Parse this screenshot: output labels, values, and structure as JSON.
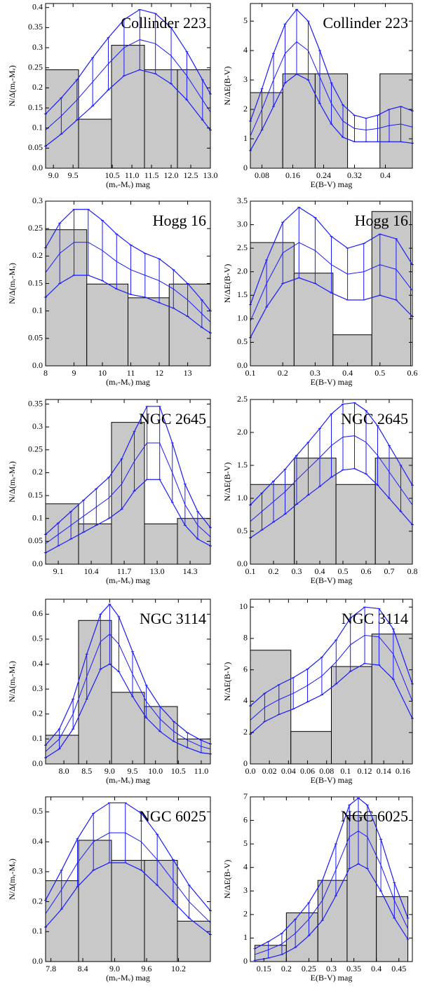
{
  "chart_data": [
    {
      "type": "histogram",
      "title": "Collinder 223",
      "x_label": "(mᵥ-Mᵥ) mag",
      "y_label": "N/Δ(mᵥ-Mᵥ)",
      "bins": [
        8.8,
        9.64,
        10.48,
        11.32,
        12.16,
        13.0
      ],
      "counts": [
        0.245,
        0.122,
        0.306,
        0.245,
        0.245
      ],
      "color": "#c8c8c8",
      "curve": {
        "color": "#1a1aff",
        "x": [
          8.8,
          9.2,
          9.6,
          10.0,
          10.4,
          10.8,
          11.2,
          11.6,
          12.0,
          12.4,
          12.8,
          13.0
        ],
        "values": [
          0.095,
          0.13,
          0.17,
          0.215,
          0.26,
          0.3,
          0.32,
          0.31,
          0.28,
          0.23,
          0.17,
          0.14
        ],
        "errors": [
          0.04,
          0.045,
          0.05,
          0.06,
          0.065,
          0.07,
          0.075,
          0.075,
          0.07,
          0.06,
          0.05,
          0.045
        ]
      },
      "xlim": [
        8.8,
        13.0
      ],
      "xticks": [
        {
          "value": 9,
          "label": "9.0"
        },
        9.5,
        10.5,
        {
          "value": 11,
          "label": "11.0"
        },
        11.5,
        {
          "value": 12,
          "label": "12.0"
        },
        12.5,
        {
          "value": 13,
          "label": "13.0"
        }
      ],
      "ylim": [
        0,
        0.41
      ],
      "yticks": [
        {
          "value": 0,
          "label": "0.0"
        },
        0.05,
        0.1,
        0.15,
        0.2,
        0.25,
        0.3,
        0.35,
        0.4
      ]
    },
    {
      "type": "histogram",
      "title": "Collinder 223",
      "x_label": "E(B-V) mag",
      "y_label": "N/ΔE(B-V)",
      "bins": [
        0.05,
        0.134,
        0.218,
        0.302,
        0.386,
        0.47
      ],
      "counts": [
        2.57,
        3.21,
        3.21,
        0,
        3.21
      ],
      "color": "#c8c8c8",
      "curve": {
        "color": "#1a1aff",
        "x": [
          0.05,
          0.08,
          0.11,
          0.14,
          0.17,
          0.2,
          0.23,
          0.26,
          0.29,
          0.32,
          0.35,
          0.38,
          0.41,
          0.44,
          0.47
        ],
        "values": [
          1.1,
          2.0,
          3.0,
          3.9,
          4.3,
          4.0,
          3.1,
          2.2,
          1.6,
          1.35,
          1.3,
          1.35,
          1.45,
          1.5,
          1.4
        ],
        "errors": [
          0.5,
          0.7,
          0.9,
          1.0,
          1.1,
          1.0,
          0.9,
          0.7,
          0.55,
          0.45,
          0.4,
          0.45,
          0.55,
          0.6,
          0.55
        ]
      },
      "xlim": [
        0.05,
        0.47
      ],
      "xticks": [
        0.08,
        0.16,
        0.24,
        0.32,
        0.4
      ],
      "ylim": [
        0,
        5.6
      ],
      "yticks": [
        0,
        1,
        2,
        3,
        4,
        5
      ]
    },
    {
      "type": "histogram",
      "title": "Hogg 16",
      "x_label": "(mᵥ-Mᵥ) mag",
      "y_label": "N/Δ(mᵥ-Mᵥ)",
      "bins": [
        8,
        9.45,
        10.9,
        12.35,
        13.8
      ],
      "counts": [
        0.248,
        0.149,
        0.124,
        0.149
      ],
      "color": "#c8c8c8",
      "curve": {
        "color": "#1a1aff",
        "x": [
          8,
          8.5,
          9,
          9.5,
          10,
          10.5,
          11,
          11.5,
          12,
          12.5,
          13,
          13.5,
          13.8
        ],
        "values": [
          0.17,
          0.205,
          0.225,
          0.225,
          0.21,
          0.19,
          0.175,
          0.165,
          0.155,
          0.14,
          0.12,
          0.095,
          0.08
        ],
        "errors": [
          0.045,
          0.055,
          0.06,
          0.06,
          0.055,
          0.05,
          0.045,
          0.04,
          0.04,
          0.035,
          0.03,
          0.025,
          0.02
        ]
      },
      "xlim": [
        8,
        13.8
      ],
      "xticks": [
        8,
        9,
        10,
        11,
        12,
        13
      ],
      "ylim": [
        0,
        0.3
      ],
      "yticks": [
        {
          "value": 0,
          "label": "0.0"
        },
        0.05,
        0.1,
        0.15,
        0.2,
        0.25,
        0.3
      ]
    },
    {
      "type": "histogram",
      "title": "Hogg 16",
      "x_label": "E(B-V) mag",
      "y_label": "N/ΔE(B-V)",
      "bins": [
        0.1,
        0.235,
        0.355,
        0.475,
        0.595
      ],
      "counts": [
        2.62,
        1.97,
        0.66,
        3.28
      ],
      "color": "#c8c8c8",
      "curve": {
        "color": "#1a1aff",
        "x": [
          0.1,
          0.15,
          0.2,
          0.25,
          0.3,
          0.35,
          0.4,
          0.45,
          0.5,
          0.55,
          0.6
        ],
        "values": [
          0.95,
          1.75,
          2.4,
          2.62,
          2.45,
          2.15,
          1.95,
          2.0,
          2.15,
          2.05,
          1.6
        ],
        "errors": [
          0.35,
          0.5,
          0.65,
          0.75,
          0.7,
          0.6,
          0.55,
          0.6,
          0.65,
          0.65,
          0.55
        ]
      },
      "xlim": [
        0.1,
        0.6
      ],
      "xticks": [
        0.1,
        0.2,
        0.3,
        0.4,
        0.5,
        0.6
      ],
      "ylim": [
        0,
        3.5
      ],
      "yticks": [
        {
          "value": 0,
          "label": "0.0"
        },
        0.5,
        {
          "value": 1,
          "label": "1.0"
        },
        1.5,
        {
          "value": 2,
          "label": "2.0"
        },
        2.5,
        {
          "value": 3,
          "label": "3.0"
        },
        3.5
      ]
    },
    {
      "type": "histogram",
      "title": "NGC 2645",
      "x_label": "(mᵥ-Mᵥ) mag",
      "y_label": "N/Δ(mᵥ-Mᵥ)",
      "bins": [
        8.6,
        9.9,
        11.2,
        12.5,
        13.8,
        15.1
      ],
      "counts": [
        0.132,
        0.088,
        0.31,
        0.088,
        0.1
      ],
      "color": "#c8c8c8",
      "curve": {
        "color": "#1a1aff",
        "x": [
          8.6,
          9.1,
          9.6,
          10.1,
          10.6,
          11.1,
          11.6,
          12.1,
          12.6,
          13.1,
          13.6,
          14.1,
          14.6,
          15.1
        ],
        "values": [
          0.045,
          0.065,
          0.085,
          0.105,
          0.125,
          0.145,
          0.175,
          0.225,
          0.265,
          0.265,
          0.2,
          0.13,
          0.085,
          0.06
        ],
        "errors": [
          0.02,
          0.025,
          0.03,
          0.035,
          0.04,
          0.045,
          0.055,
          0.065,
          0.08,
          0.08,
          0.065,
          0.045,
          0.03,
          0.02
        ]
      },
      "xlim": [
        8.6,
        15.1
      ],
      "xticks": [
        9.1,
        10.4,
        11.7,
        {
          "value": 13,
          "label": "13.0"
        },
        14.3
      ],
      "ylim": [
        0,
        0.36
      ],
      "yticks": [
        {
          "value": 0,
          "label": "0.0"
        },
        0.05,
        0.1,
        0.15,
        0.2,
        0.25,
        0.3,
        0.35
      ]
    },
    {
      "type": "histogram",
      "title": "NGC 2645",
      "x_label": "E(B-V) mag",
      "y_label": "N/ΔE(B-V)",
      "bins": [
        0.1,
        0.29,
        0.47,
        0.64,
        0.8
      ],
      "counts": [
        1.21,
        1.61,
        1.21,
        1.61
      ],
      "color": "#c8c8c8",
      "curve": {
        "color": "#1a1aff",
        "x": [
          0.1,
          0.15,
          0.2,
          0.25,
          0.3,
          0.35,
          0.4,
          0.45,
          0.5,
          0.55,
          0.6,
          0.65,
          0.7,
          0.75,
          0.8
        ],
        "values": [
          0.65,
          0.8,
          0.95,
          1.1,
          1.28,
          1.45,
          1.62,
          1.8,
          1.93,
          1.95,
          1.85,
          1.65,
          1.4,
          1.15,
          0.9
        ],
        "errors": [
          0.25,
          0.28,
          0.31,
          0.34,
          0.37,
          0.4,
          0.44,
          0.48,
          0.5,
          0.5,
          0.48,
          0.45,
          0.4,
          0.35,
          0.3
        ]
      },
      "xlim": [
        0.1,
        0.8
      ],
      "xticks": [
        0.1,
        0.2,
        0.3,
        0.4,
        0.5,
        0.6,
        0.7,
        0.8
      ],
      "ylim": [
        0,
        2.5
      ],
      "yticks": [
        {
          "value": 0,
          "label": "0.0"
        },
        0.5,
        {
          "value": 1,
          "label": "1.0"
        },
        1.5,
        {
          "value": 2,
          "label": "2.0"
        },
        2.5
      ]
    },
    {
      "type": "histogram",
      "title": "NGC 3114",
      "x_label": "(mᵥ-Mᵥ) mag",
      "y_label": "N/Δ(mᵥ-Mᵥ)",
      "bins": [
        7.6,
        8.32,
        9.04,
        9.76,
        10.48,
        11.2
      ],
      "counts": [
        0.115,
        0.575,
        0.287,
        0.23,
        0.1
      ],
      "color": "#c8c8c8",
      "curve": {
        "color": "#1a1aff",
        "x": [
          7.6,
          7.9,
          8.2,
          8.5,
          8.8,
          9.0,
          9.2,
          9.5,
          9.8,
          10.1,
          10.4,
          10.7,
          11.0,
          11.2
        ],
        "values": [
          0.05,
          0.1,
          0.2,
          0.35,
          0.49,
          0.52,
          0.48,
          0.36,
          0.25,
          0.18,
          0.13,
          0.095,
          0.07,
          0.06
        ],
        "errors": [
          0.025,
          0.04,
          0.06,
          0.09,
          0.11,
          0.12,
          0.11,
          0.09,
          0.065,
          0.05,
          0.04,
          0.03,
          0.025,
          0.02
        ]
      },
      "xlim": [
        7.6,
        11.2
      ],
      "xticks": [
        {
          "value": 8,
          "label": "8.0"
        },
        8.5,
        {
          "value": 9,
          "label": "9.0"
        },
        9.5,
        {
          "value": 10,
          "label": "10.0"
        },
        10.5,
        {
          "value": 11,
          "label": "11.0"
        }
      ],
      "ylim": [
        0,
        0.66
      ],
      "yticks": [
        {
          "value": 0,
          "label": "0.0"
        },
        0.1,
        0.2,
        0.3,
        0.4,
        0.5,
        0.6
      ]
    },
    {
      "type": "histogram",
      "title": "NGC 3114",
      "x_label": "E(B-V) mag",
      "y_label": "N/ΔE(B-V)",
      "bins": [
        0,
        0.0425,
        0.085,
        0.1275,
        0.17
      ],
      "counts": [
        7.25,
        2.07,
        6.21,
        8.28
      ],
      "color": "#c8c8c8",
      "curve": {
        "color": "#1a1aff",
        "x": [
          0,
          0.015,
          0.03,
          0.045,
          0.06,
          0.075,
          0.09,
          0.105,
          0.12,
          0.135,
          0.15,
          0.17
        ],
        "values": [
          2.8,
          3.6,
          4.1,
          4.5,
          5.0,
          5.6,
          6.5,
          7.6,
          8.2,
          8.1,
          7.0,
          4.0
        ],
        "errors": [
          0.9,
          0.9,
          0.95,
          1.0,
          1.05,
          1.2,
          1.4,
          1.7,
          1.8,
          1.8,
          1.6,
          1.1
        ]
      },
      "xlim": [
        0,
        0.17
      ],
      "xticks": [
        {
          "value": 0,
          "label": "0.0"
        },
        0.02,
        0.04,
        0.06,
        0.08,
        0.1,
        0.12,
        0.14,
        0.16
      ],
      "ylim": [
        0,
        10.5
      ],
      "yticks": [
        0,
        2,
        4,
        6,
        8,
        10
      ]
    },
    {
      "type": "histogram",
      "title": "NGC 6025",
      "x_label": "(mᵥ-Mᵥ) mag",
      "y_label": "N/Δ(mᵥ-Mᵥ)",
      "bins": [
        7.7,
        8.32,
        8.94,
        9.56,
        10.18,
        10.8
      ],
      "counts": [
        0.27,
        0.405,
        0.338,
        0.338,
        0.135
      ],
      "color": "#c8c8c8",
      "curve": {
        "color": "#1a1aff",
        "x": [
          7.7,
          8.0,
          8.3,
          8.6,
          8.9,
          9.2,
          9.5,
          9.8,
          10.1,
          10.4,
          10.8
        ],
        "values": [
          0.16,
          0.24,
          0.33,
          0.4,
          0.43,
          0.43,
          0.4,
          0.34,
          0.27,
          0.2,
          0.13
        ],
        "errors": [
          0.045,
          0.065,
          0.08,
          0.095,
          0.1,
          0.1,
          0.095,
          0.085,
          0.07,
          0.055,
          0.04
        ]
      },
      "xlim": [
        7.7,
        10.8
      ],
      "xticks": [
        7.8,
        8.4,
        {
          "value": 9,
          "label": "9.0"
        },
        9.6,
        10.2
      ],
      "ylim": [
        0,
        0.55
      ],
      "yticks": [
        {
          "value": 0,
          "label": "0.0"
        },
        0.1,
        0.2,
        0.3,
        0.4,
        0.5
      ]
    },
    {
      "type": "histogram",
      "title": "NGC 6025",
      "x_label": "E(B-V) mag",
      "y_label": "N/ΔE(B-V)",
      "bins": [
        0.13,
        0.2,
        0.27,
        0.335,
        0.4,
        0.47
      ],
      "counts": [
        0.69,
        2.07,
        3.45,
        6.21,
        2.76
      ],
      "color": "#c8c8c8",
      "curve": {
        "color": "#1a1aff",
        "x": [
          0.13,
          0.16,
          0.19,
          0.22,
          0.25,
          0.28,
          0.31,
          0.34,
          0.36,
          0.38,
          0.41,
          0.44,
          0.47
        ],
        "values": [
          0.3,
          0.5,
          0.75,
          1.2,
          1.8,
          2.6,
          3.9,
          5.3,
          5.55,
          5.3,
          4.1,
          2.6,
          1.4
        ],
        "errors": [
          0.25,
          0.35,
          0.45,
          0.6,
          0.7,
          0.85,
          1.1,
          1.35,
          1.4,
          1.35,
          1.1,
          0.75,
          0.45
        ]
      },
      "xlim": [
        0.12,
        0.48
      ],
      "xticks": [
        0.15,
        0.2,
        0.25,
        0.3,
        0.35,
        0.4,
        0.45
      ],
      "ylim": [
        0,
        7
      ],
      "yticks": [
        0,
        1,
        2,
        3,
        4,
        5,
        6,
        7
      ]
    }
  ]
}
